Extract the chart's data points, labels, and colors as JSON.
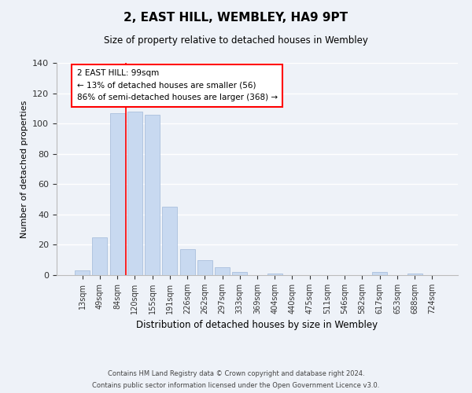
{
  "title": "2, EAST HILL, WEMBLEY, HA9 9PT",
  "subtitle": "Size of property relative to detached houses in Wembley",
  "xlabel": "Distribution of detached houses by size in Wembley",
  "ylabel": "Number of detached properties",
  "bar_color": "#c8d9f0",
  "bar_edge_color": "#a0b8d8",
  "categories": [
    "13sqm",
    "49sqm",
    "84sqm",
    "120sqm",
    "155sqm",
    "191sqm",
    "226sqm",
    "262sqm",
    "297sqm",
    "333sqm",
    "369sqm",
    "404sqm",
    "440sqm",
    "475sqm",
    "511sqm",
    "546sqm",
    "582sqm",
    "617sqm",
    "653sqm",
    "688sqm",
    "724sqm"
  ],
  "values": [
    3,
    25,
    107,
    108,
    106,
    45,
    17,
    10,
    5,
    2,
    0,
    1,
    0,
    0,
    0,
    0,
    0,
    2,
    0,
    1,
    0
  ],
  "ylim": [
    0,
    140
  ],
  "yticks": [
    0,
    20,
    40,
    60,
    80,
    100,
    120,
    140
  ],
  "annotation_box_text": "2 EAST HILL: 99sqm\n← 13% of detached houses are smaller (56)\n86% of semi-detached houses are larger (368) →",
  "red_line_x": 2.5,
  "footnote1": "Contains HM Land Registry data © Crown copyright and database right 2024.",
  "footnote2": "Contains public sector information licensed under the Open Government Licence v3.0.",
  "background_color": "#eef2f8"
}
